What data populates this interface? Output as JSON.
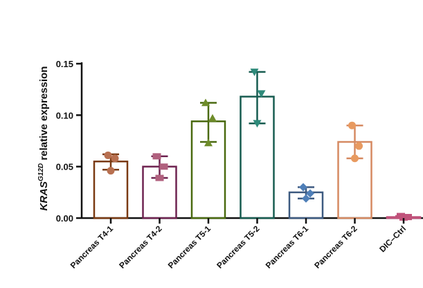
{
  "chart_data": {
    "type": "bar",
    "ylabel_main": "KRAS",
    "ylabel_superscript": "G12D",
    "ylabel_rest": " relative expression",
    "ylim": [
      0,
      0.15
    ],
    "yticks": [
      "0.00",
      "0.05",
      "0.10",
      "0.15"
    ],
    "ytick_values": [
      0,
      0.05,
      0.1,
      0.15
    ],
    "grid": false,
    "legend": "none",
    "categories": [
      "Pancreas T4-1",
      "Pancreas T4-2",
      "Pancreas T5-1",
      "Pancreas T5-2",
      "Pancreas T6-1",
      "Pancreas T6-2",
      "DIC–Ctrl"
    ],
    "values": [
      0.055,
      0.05,
      0.094,
      0.118,
      0.025,
      0.074,
      0.001
    ],
    "error_low": [
      0.047,
      0.039,
      0.074,
      0.092,
      0.019,
      0.058,
      0.0005
    ],
    "error_high": [
      0.062,
      0.06,
      0.112,
      0.142,
      0.03,
      0.09,
      0.002
    ],
    "points": [
      [
        0.061,
        0.058,
        0.046
      ],
      [
        0.06,
        0.05,
        0.039
      ],
      [
        0.112,
        0.097,
        0.073
      ],
      [
        0.142,
        0.121,
        0.092
      ],
      [
        0.03,
        0.024,
        0.019
      ],
      [
        0.09,
        0.07,
        0.058
      ],
      [
        0.002,
        0.001,
        0.0005
      ]
    ],
    "marker_shapes": [
      "circle",
      "square",
      "triangle-up",
      "triangle-down",
      "diamond",
      "circle",
      "square"
    ],
    "colors": [
      "#7a3a12",
      "#6e2350",
      "#4a6a10",
      "#175c50",
      "#3d5a80",
      "#d68a62",
      "#c0527a"
    ],
    "marker_colors": [
      "#b87050",
      "#b0607e",
      "#6e8c2a",
      "#2e8a7a",
      "#4f7fb8",
      "#e89a60",
      "#c0527a"
    ]
  }
}
